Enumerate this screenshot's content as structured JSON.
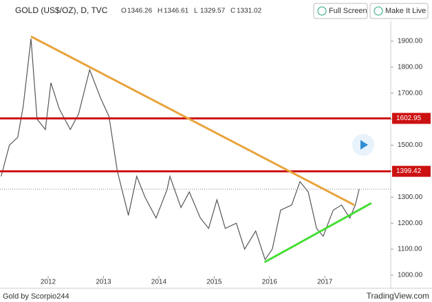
{
  "chart_data": {
    "type": "line",
    "title": "GOLD (US$/OZ), D, TVC",
    "ohlc": [
      {
        "label": "O",
        "value": 1346.26
      },
      {
        "label": "H",
        "value": 1346.61
      },
      {
        "label": "L",
        "value": 1329.57
      },
      {
        "label": "C",
        "value": 1331.02
      }
    ],
    "x": [
      2011.15,
      2011.3,
      2011.45,
      2011.55,
      2011.69,
      2011.8,
      2011.95,
      2012.05,
      2012.2,
      2012.4,
      2012.55,
      2012.75,
      2012.95,
      2013.1,
      2013.25,
      2013.45,
      2013.6,
      2013.75,
      2013.95,
      2014.15,
      2014.2,
      2014.4,
      2014.55,
      2014.75,
      2014.9,
      2015.05,
      2015.2,
      2015.4,
      2015.55,
      2015.75,
      2015.92,
      2016.05,
      2016.2,
      2016.4,
      2016.55,
      2016.7,
      2016.85,
      2016.97,
      2017.15,
      2017.3,
      2017.45,
      2017.55,
      2017.62
    ],
    "values": [
      1380,
      1500,
      1530,
      1650,
      1910,
      1600,
      1560,
      1740,
      1640,
      1560,
      1620,
      1790,
      1680,
      1610,
      1400,
      1230,
      1380,
      1300,
      1220,
      1330,
      1380,
      1260,
      1320,
      1220,
      1180,
      1290,
      1180,
      1200,
      1100,
      1170,
      1060,
      1100,
      1250,
      1270,
      1360,
      1320,
      1180,
      1150,
      1250,
      1270,
      1220,
      1270,
      1331
    ],
    "color": "#555555",
    "xlim": [
      2011.13,
      2018.19
    ],
    "ylim": [
      955,
      1979
    ],
    "xticks": [
      2012,
      2013,
      2014,
      2015,
      2016,
      2017
    ],
    "yticks": [
      {
        "value": 1000,
        "label": "1000.00"
      },
      {
        "value": 1100,
        "label": "1100.00"
      },
      {
        "value": 1200,
        "label": "1200.00"
      },
      {
        "value": 1300,
        "label": "1300.00"
      },
      {
        "value": 1400,
        "label": "1400.00"
      },
      {
        "value": 1500,
        "label": "1500.00"
      },
      {
        "value": 1600,
        "label": "1600.00"
      },
      {
        "value": 1700,
        "label": "1700.00"
      },
      {
        "value": 1800,
        "label": "1800.00"
      },
      {
        "value": 1900,
        "label": "1900.00"
      }
    ],
    "horizontal_lines": [
      {
        "value": 1602.95,
        "color": "#cc1111"
      },
      {
        "value": 1399.42,
        "color": "#cc1111"
      }
    ],
    "trend_lines": [
      {
        "x": [
          2011.69,
          2017.53
        ],
        "values": [
          1918,
          1270
        ],
        "color": "#e8a33a"
      },
      {
        "x": [
          2015.91,
          2017.84
        ],
        "values": [
          1050,
          1277
        ],
        "color": "#44dd33"
      }
    ]
  },
  "buttons": [
    "Full Screen",
    "Make It Live"
  ],
  "footer": {
    "left": "Gold by Scorpio244",
    "right": "TradingView.com"
  }
}
